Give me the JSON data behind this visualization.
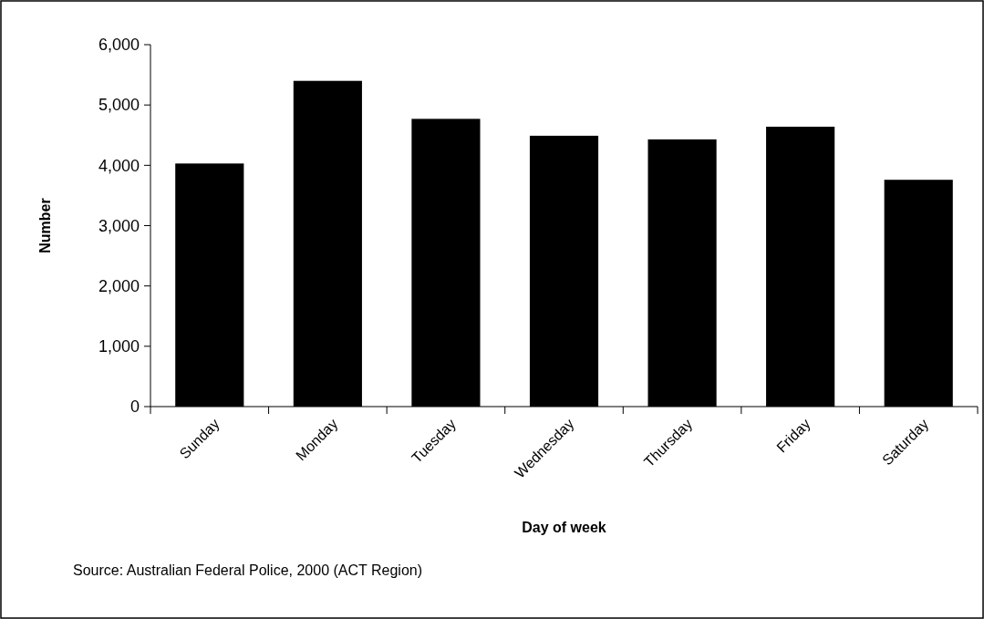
{
  "chart_data": {
    "type": "bar",
    "ylabel": "Number",
    "xlabel": "Day of week",
    "categories": [
      "Sunday",
      "Monday",
      "Tuesday",
      "Wednesday",
      "Thursday",
      "Friday",
      "Saturday"
    ],
    "values": [
      4030,
      5400,
      4770,
      4490,
      4430,
      4640,
      3760
    ],
    "color": "#000000",
    "ylim": [
      0,
      6000
    ],
    "yticks": [
      {
        "value": 0,
        "label": "0"
      },
      {
        "value": 1000,
        "label": "1,000"
      },
      {
        "value": 2000,
        "label": "2,000"
      },
      {
        "value": 3000,
        "label": "3,000"
      },
      {
        "value": 4000,
        "label": "4,000"
      },
      {
        "value": 5000,
        "label": "5,000"
      },
      {
        "value": 6000,
        "label": "6,000"
      }
    ],
    "annotations": [
      "Source: Australian Federal Police, 2000 (ACT Region)"
    ]
  }
}
